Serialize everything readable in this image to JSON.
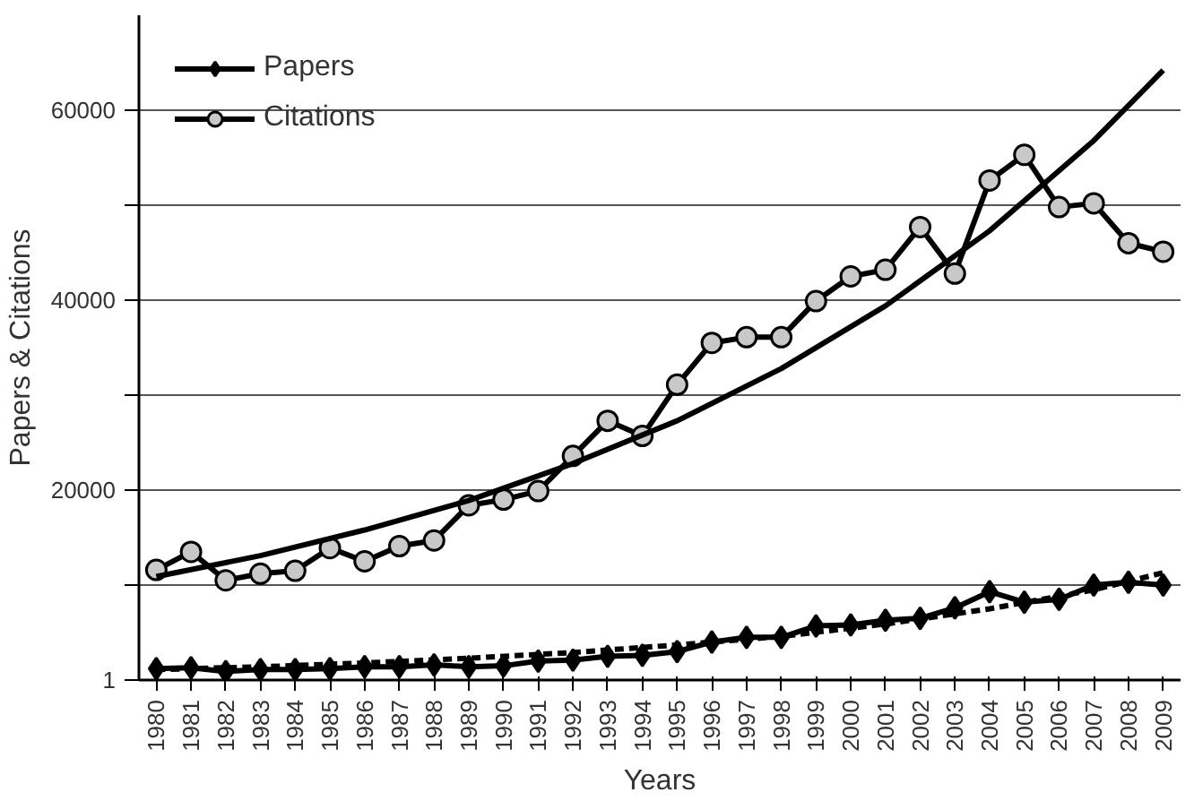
{
  "chart_data": {
    "type": "line",
    "xlabel": "Years",
    "ylabel": "Papers & Citations",
    "x": [
      1980,
      1981,
      1982,
      1983,
      1984,
      1985,
      1986,
      1987,
      1988,
      1989,
      1990,
      1991,
      1992,
      1993,
      1994,
      1995,
      1996,
      1997,
      1998,
      1999,
      2000,
      2001,
      2002,
      2003,
      2004,
      2005,
      2006,
      2007,
      2008,
      2009
    ],
    "series": [
      {
        "name": "Papers",
        "color": "#000000",
        "marker": "diamond",
        "values": [
          1200,
          1300,
          900,
          1100,
          1100,
          1200,
          1400,
          1400,
          1600,
          1400,
          1500,
          2000,
          2100,
          2500,
          2600,
          3000,
          4000,
          4500,
          4500,
          5700,
          5800,
          6300,
          6500,
          7600,
          9300,
          8200,
          8500,
          10000,
          10300,
          10000
        ]
      },
      {
        "name": "Citations",
        "color": "#000000",
        "marker": "circle",
        "values": [
          11600,
          13500,
          10500,
          11200,
          11500,
          13900,
          12500,
          14100,
          14700,
          18400,
          19000,
          19900,
          23600,
          27300,
          25700,
          31100,
          35500,
          36100,
          36100,
          39900,
          42500,
          43200,
          47700,
          42800,
          52600,
          55300,
          49800,
          50200,
          46000,
          45100
        ]
      },
      {
        "color": "#000000",
        "marker": "none",
        "line_style": "solid",
        "x": [
          1980,
          1983,
          1986,
          1989,
          1992,
          1995,
          1998,
          2001,
          2004,
          2007,
          2009
        ],
        "values": [
          10900,
          13100,
          15800,
          18900,
          22800,
          27300,
          32800,
          39400,
          47300,
          56800,
          64200
        ]
      },
      {
        "color": "#000000",
        "marker": "none",
        "line_style": "dashed",
        "x": [
          1980,
          1983,
          1986,
          1989,
          1992,
          1995,
          1998,
          2001,
          2004,
          2007,
          2009
        ],
        "values": [
          1100,
          1400,
          1800,
          2300,
          2900,
          3700,
          4600,
          5900,
          7500,
          9500,
          11300
        ]
      }
    ],
    "xlim": [
      1979.5,
      2009.5
    ],
    "xticks": [
      1980,
      1981,
      1982,
      1983,
      1984,
      1985,
      1986,
      1987,
      1988,
      1989,
      1990,
      1991,
      1992,
      1993,
      1994,
      1995,
      1996,
      1997,
      1998,
      1999,
      2000,
      2001,
      2002,
      2003,
      2004,
      2005,
      2006,
      2007,
      2008,
      2009
    ],
    "ylim": [
      1,
      70000
    ],
    "yticks": [
      1,
      {
        "value": 10000,
        "label": null
      },
      20000,
      {
        "value": 30000,
        "label": null
      },
      40000,
      {
        "value": 50000,
        "label": null
      },
      60000
    ],
    "grid": "y",
    "legend": "top left",
    "line_style": "solid"
  }
}
